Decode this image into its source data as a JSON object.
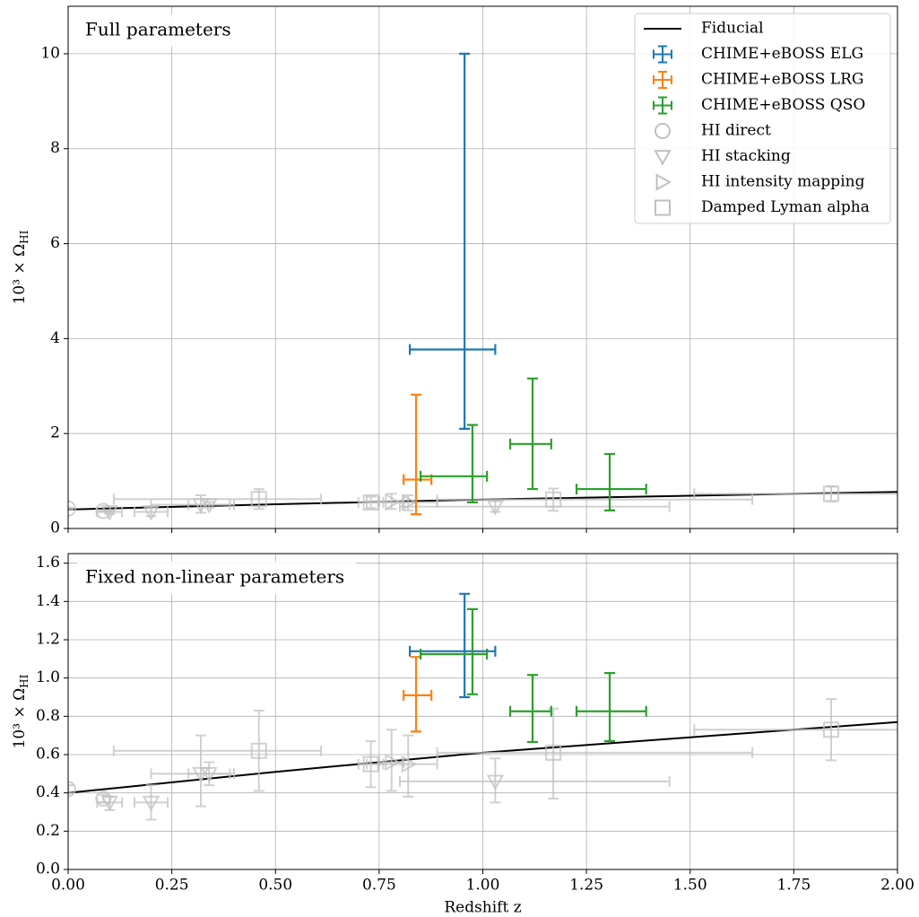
{
  "chart_data": [
    {
      "type": "errorbar",
      "title": "Full parameters",
      "ylabel": "10³ × Ω",
      "ylabel_sub": "HI",
      "ylim": [
        0,
        11
      ],
      "yticks": [
        0,
        2,
        4,
        6,
        8,
        10
      ],
      "grid": true,
      "legend": "upper right",
      "series": [
        {
          "name": "Fiducial",
          "color": "#000000",
          "kind": "line",
          "x": [
            0,
            0.5,
            1.0,
            1.5,
            2.0
          ],
          "y": [
            0.4,
            0.51,
            0.61,
            0.69,
            0.77
          ]
        },
        {
          "name": "CHIME+eBOSS ELG",
          "color": "#1f77b4",
          "kind": "errorbar",
          "x": [
            0.956
          ],
          "y": [
            3.77
          ],
          "xerr": [
            [
              0.132,
              0.074
            ]
          ],
          "yerr": [
            [
              1.67,
              6.23
            ]
          ]
        },
        {
          "name": "CHIME+eBOSS LRG",
          "color": "#ff7f0e",
          "kind": "errorbar",
          "x": [
            0.839
          ],
          "y": [
            1.03
          ],
          "xerr": [
            [
              0.03,
              0.037
            ]
          ],
          "yerr": [
            [
              0.73,
              1.79
            ]
          ]
        },
        {
          "name": "CHIME+eBOSS QSO",
          "color": "#2ca02c",
          "kind": "errorbar",
          "x": [
            0.975,
            1.12,
            1.306
          ],
          "y": [
            1.1,
            1.78,
            0.83
          ],
          "xerr": [
            [
              0.125,
              0.035
            ],
            [
              0.054,
              0.045
            ],
            [
              0.08,
              0.088
            ]
          ],
          "yerr": [
            [
              0.55,
              1.08
            ],
            [
              0.95,
              1.38
            ],
            [
              0.45,
              0.74
            ]
          ]
        },
        {
          "name": "HI direct",
          "color": "#c0c0c0",
          "kind": "marker",
          "marker": "circle",
          "x": [
            0.0,
            0.085
          ],
          "y": [
            0.42,
            0.37
          ],
          "xerr": [
            [
              0,
              0
            ],
            [
              0,
              0
            ]
          ],
          "yerr": [
            [
              0.02,
              0.02
            ],
            [
              0.02,
              0.02
            ]
          ]
        },
        {
          "name": "HI stacking",
          "color": "#c0c0c0",
          "kind": "marker",
          "marker": "triangle-down",
          "x": [
            0.1,
            0.2,
            0.32,
            0.34,
            1.03
          ],
          "y": [
            0.35,
            0.35,
            0.5,
            0.5,
            0.46
          ],
          "xerr": [
            [
              0.03,
              0.03
            ],
            [
              0.04,
              0.04
            ],
            [
              0.12,
              0.08
            ],
            [
              0.05,
              0.05
            ],
            [
              0.23,
              0.42
            ]
          ],
          "yerr": [
            [
              0.04,
              0.03
            ],
            [
              0.09,
              0.09
            ],
            [
              0.17,
              0.2
            ],
            [
              0.06,
              0.06
            ],
            [
              0.11,
              0.12
            ]
          ]
        },
        {
          "name": "HI intensity mapping",
          "color": "#c0c0c0",
          "kind": "marker",
          "marker": "triangle-right",
          "x": [
            0.78,
            0.82
          ],
          "y": [
            0.56,
            0.55
          ],
          "xerr": [
            [
              0.03,
              0.03
            ],
            [
              0.1,
              0.07
            ]
          ],
          "yerr": [
            [
              0.15,
              0.17
            ],
            [
              0.17,
              0.15
            ]
          ]
        },
        {
          "name": "Damped Lyman alpha",
          "color": "#c0c0c0",
          "kind": "marker",
          "marker": "square",
          "x": [
            0.46,
            0.73,
            1.17,
            1.84
          ],
          "y": [
            0.62,
            0.55,
            0.61,
            0.73
          ],
          "xerr": [
            [
              0.35,
              0.15
            ],
            [
              0.03,
              0.03
            ],
            [
              0.28,
              0.48
            ],
            [
              0.33,
              0.35
            ]
          ],
          "yerr": [
            [
              0.21,
              0.21
            ],
            [
              0.12,
              0.12
            ],
            [
              0.24,
              0.23
            ],
            [
              0.16,
              0.16
            ]
          ]
        }
      ]
    },
    {
      "type": "errorbar",
      "title": "Fixed non-linear parameters",
      "ylabel": "10³ × Ω",
      "ylabel_sub": "HI",
      "xlabel": "Redshift z",
      "xlim": [
        0,
        2
      ],
      "xticks": [
        {
          "value": 0,
          "label": "0.00"
        },
        0.25,
        {
          "value": 0.5,
          "label": "0.50"
        },
        0.75,
        {
          "value": 1,
          "label": "1.00"
        },
        1.25,
        {
          "value": 1.5,
          "label": "1.50"
        },
        1.75,
        {
          "value": 2,
          "label": "2.00"
        }
      ],
      "ylim": [
        0,
        1.65
      ],
      "yticks": [
        {
          "value": 0,
          "label": "0.0"
        },
        0.2,
        0.4,
        0.6,
        0.8,
        {
          "value": 1,
          "label": "1.0"
        },
        1.2,
        1.4,
        1.6
      ],
      "grid": true,
      "series": [
        {
          "color": "#1f77b4",
          "kind": "errorbar",
          "x": [
            0.956
          ],
          "y": [
            1.14
          ],
          "xerr": [
            [
              0.132,
              0.074
            ]
          ],
          "yerr": [
            [
              0.24,
              0.3
            ]
          ]
        },
        {
          "color": "#ff7f0e",
          "kind": "errorbar",
          "x": [
            0.839
          ],
          "y": [
            0.91
          ],
          "xerr": [
            [
              0.03,
              0.037
            ]
          ],
          "yerr": [
            [
              0.19,
              0.2
            ]
          ]
        },
        {
          "color": "#2ca02c",
          "kind": "errorbar",
          "x": [
            0.975,
            1.12,
            1.306
          ],
          "y": [
            1.125,
            0.826,
            0.826
          ],
          "xerr": [
            [
              0.125,
              0.035
            ],
            [
              0.054,
              0.045
            ],
            [
              0.08,
              0.088
            ]
          ],
          "yerr": [
            [
              0.21,
              0.235
            ],
            [
              0.16,
              0.19
            ],
            [
              0.155,
              0.2
            ]
          ]
        }
      ]
    }
  ]
}
